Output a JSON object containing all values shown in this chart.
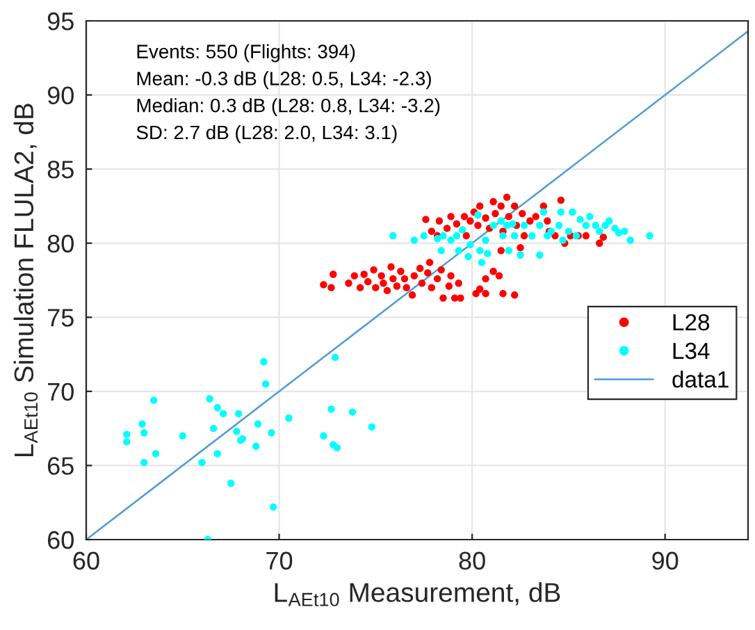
{
  "chart_data": {
    "type": "scatter",
    "xlabel": "L$_{AEt10}$ Measurement, dB",
    "ylabel": "L$_{AEt10}$ Simulation FLULA2, dB",
    "annotations": [
      "Events: 550 (Flights: 394)",
      "Mean: -0.3 dB (L28: 0.5, L34: -2.3)",
      "Median: 0.3 dB (L28: 0.8, L34: -3.2)",
      "SD: 2.7 dB (L28: 2.0, L34: 3.1)"
    ],
    "xlim": [
      60,
      94.3
    ],
    "ylim": [
      60,
      95
    ],
    "xticks": [
      60,
      70,
      80,
      90
    ],
    "yticks": [
      60,
      65,
      70,
      75,
      80,
      85,
      90,
      95
    ],
    "grid": true,
    "legend": "right",
    "series": [
      {
        "name": "L28",
        "color": "#ff0000",
        "marker": "circle",
        "x": [
          72.3,
          72.7,
          72.8,
          73.6,
          73.9,
          74.2,
          74.4,
          74.6,
          74.9,
          75.0,
          75.3,
          75.4,
          75.6,
          75.8,
          75.9,
          76.1,
          76.3,
          76.5,
          76.6,
          76.9,
          77.0,
          77.3,
          77.4,
          77.7,
          77.8,
          77.9,
          78.2,
          78.4,
          78.5,
          78.8,
          78.9,
          79.1,
          79.4,
          79.3,
          80.2,
          80.4,
          80.7,
          80.7,
          81.1,
          81.4,
          81.6,
          82.2,
          77.6,
          77.9,
          78.3,
          78.7,
          78.9,
          79.2,
          79.6,
          79.7,
          79.9,
          80.1,
          80.3,
          80.4,
          80.7,
          80.9,
          81.1,
          81.2,
          81.5,
          81.6,
          81.8,
          81.9,
          82.2,
          82.3,
          82.6,
          82.7,
          82.5,
          83.0,
          83.3,
          83.7,
          84.0,
          84.3,
          84.6,
          84.8,
          85.1,
          85.5,
          85.9,
          86.6,
          86.8,
          83.9,
          81.5,
          78.2
        ],
        "values": [
          77.2,
          77.0,
          77.9,
          77.3,
          77.8,
          77.0,
          77.9,
          77.4,
          78.2,
          77.0,
          77.8,
          77.3,
          76.8,
          78.4,
          77.6,
          77.1,
          78.1,
          77.6,
          77.0,
          76.5,
          77.8,
          78.3,
          77.3,
          78.0,
          78.7,
          77.0,
          77.6,
          78.2,
          76.3,
          77.1,
          77.8,
          76.3,
          76.3,
          77.3,
          76.6,
          76.9,
          77.6,
          76.6,
          78.1,
          77.8,
          76.6,
          76.5,
          81.6,
          80.8,
          81.5,
          81.0,
          81.8,
          81.3,
          81.8,
          80.5,
          81.5,
          82.1,
          81.2,
          82.5,
          81.7,
          81.0,
          82.8,
          82.0,
          82.5,
          80.8,
          83.1,
          81.8,
          82.5,
          81.2,
          82.0,
          80.5,
          79.7,
          81.5,
          81.8,
          82.5,
          80.8,
          80.5,
          82.9,
          80.0,
          80.5,
          80.5,
          80.5,
          80.0,
          80.4,
          81.5,
          79.5,
          80.5
        ]
      },
      {
        "name": "L34",
        "color": "#00ffff",
        "marker": "circle",
        "x": [
          62.1,
          62.1,
          62.9,
          63.0,
          63.5,
          63.6,
          63.0,
          65.0,
          66.0,
          66.3,
          66.4,
          66.6,
          66.8,
          67.1,
          66.8,
          67.5,
          67.9,
          67.8,
          68.0,
          68.1,
          68.8,
          68.9,
          69.2,
          69.3,
          69.6,
          69.7,
          70.5,
          72.3,
          72.7,
          72.8,
          73.0,
          72.9,
          73.8,
          74.8,
          75.9,
          77.0,
          77.5,
          78.2,
          78.4,
          78.5,
          78.9,
          79.2,
          79.3,
          79.5,
          79.8,
          79.9,
          80.3,
          80.4,
          80.5,
          80.8,
          80.7,
          81.1,
          81.5,
          81.6,
          81.8,
          82.1,
          82.2,
          82.5,
          81.9,
          82.7,
          83.1,
          83.5,
          83.7,
          83.9,
          84.1,
          84.5,
          84.7,
          84.6,
          85.0,
          85.2,
          85.4,
          85.6,
          85.9,
          86.1,
          86.4,
          86.6,
          86.9,
          87.1,
          87.4,
          87.6,
          87.9,
          88.2,
          89.2,
          83.5
        ],
        "values": [
          67.1,
          66.6,
          67.8,
          67.2,
          69.4,
          65.8,
          65.2,
          67.0,
          65.2,
          60.0,
          69.5,
          67.5,
          68.9,
          68.5,
          65.8,
          63.8,
          68.5,
          67.3,
          66.7,
          66.8,
          66.3,
          67.8,
          72.0,
          70.5,
          67.2,
          62.2,
          68.2,
          67.0,
          68.8,
          66.4,
          66.2,
          72.3,
          68.6,
          67.6,
          80.5,
          80.2,
          80.5,
          80.3,
          79.5,
          80.5,
          80.2,
          80.5,
          79.5,
          80.9,
          79.1,
          79.9,
          81.9,
          79.5,
          78.7,
          79.3,
          80.2,
          81.2,
          81.5,
          80.5,
          81.2,
          81.3,
          80.5,
          79.2,
          79.5,
          81.2,
          80.5,
          81.2,
          82.1,
          80.5,
          80.8,
          81.2,
          80.2,
          82.1,
          80.8,
          82.1,
          80.5,
          81.6,
          81.2,
          81.8,
          81.2,
          80.8,
          81.2,
          81.5,
          81.0,
          80.7,
          80.8,
          80.2,
          80.5,
          79.2
        ]
      },
      {
        "name": "data1",
        "color": "#4d9bd8",
        "type": "line",
        "x": [
          60,
          94.3
        ],
        "values": [
          60,
          94.3
        ]
      }
    ]
  }
}
